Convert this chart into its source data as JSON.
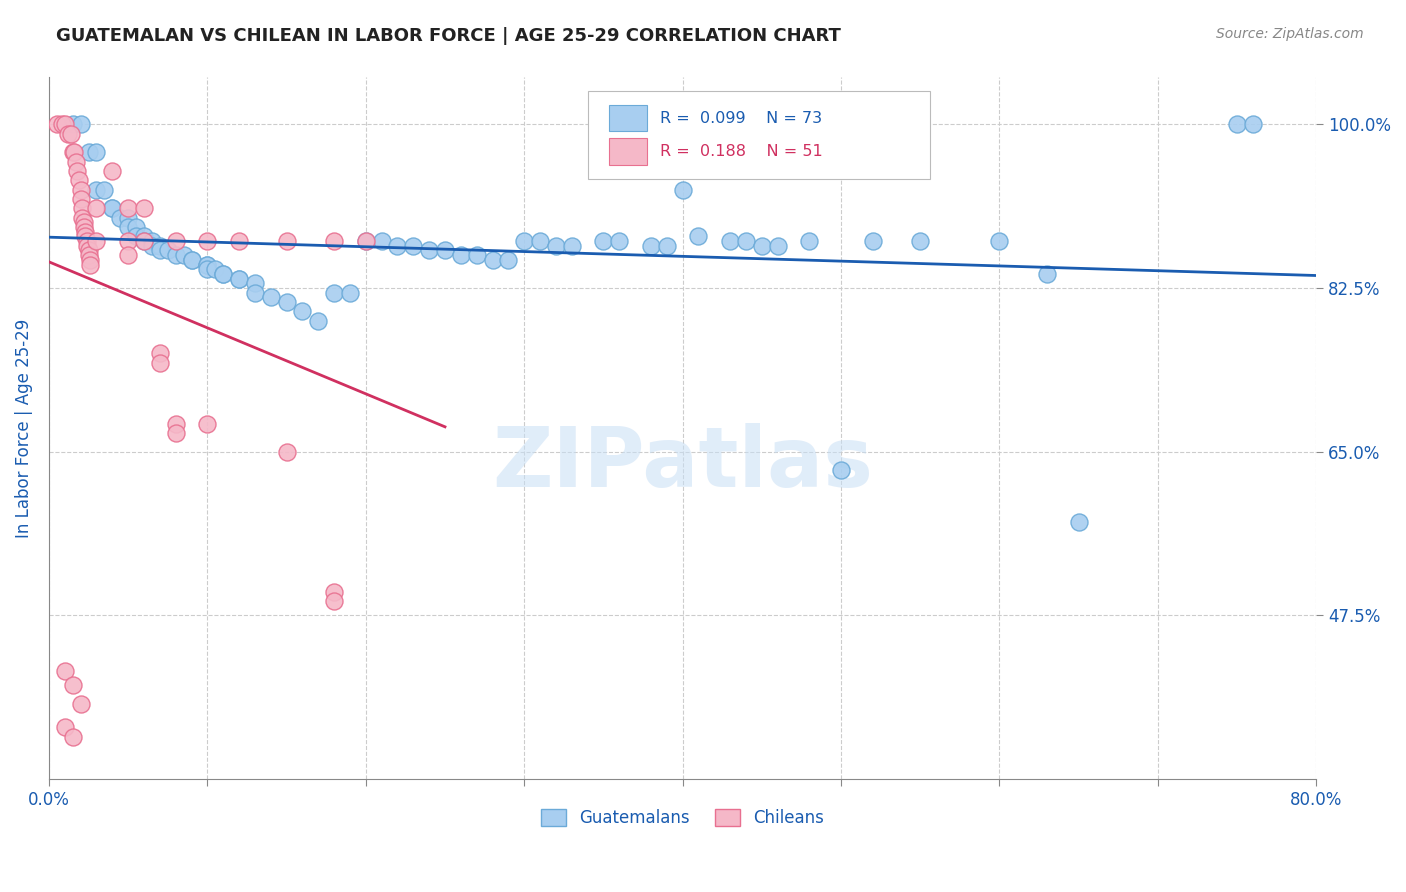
{
  "title": "GUATEMALAN VS CHILEAN IN LABOR FORCE | AGE 25-29 CORRELATION CHART",
  "source": "Source: ZipAtlas.com",
  "ylabel": "In Labor Force | Age 25-29",
  "watermark": "ZIPatlas",
  "R_blue": "0.099",
  "N_blue": "73",
  "R_pink": "0.188",
  "N_pink": "51",
  "blue_color": "#A8CEF0",
  "blue_edge_color": "#6BAAD8",
  "pink_color": "#F5B8C8",
  "pink_edge_color": "#E87090",
  "blue_line_color": "#1A5CB0",
  "pink_line_color": "#D03060",
  "grid_color": "#CCCCCC",
  "title_color": "#222222",
  "axis_tick_color": "#1A5CB0",
  "ylabel_color": "#1A5CB0",
  "xlim": [
    0.0,
    0.8
  ],
  "ylim": [
    0.3,
    1.05
  ],
  "ytick_vals": [
    1.0,
    0.825,
    0.65,
    0.475
  ],
  "ytick_labels": [
    "100.0%",
    "82.5%",
    "65.0%",
    "47.5%"
  ],
  "xtick_vals": [
    0.0,
    0.1,
    0.2,
    0.3,
    0.4,
    0.5,
    0.6,
    0.7,
    0.8
  ],
  "xtick_labels": [
    "0.0%",
    "",
    "",
    "",
    "",
    "",
    "",
    "",
    "80.0%"
  ],
  "blue_scatter": [
    [
      0.015,
      1.0
    ],
    [
      0.02,
      1.0
    ],
    [
      0.025,
      0.97
    ],
    [
      0.03,
      0.97
    ],
    [
      0.03,
      0.93
    ],
    [
      0.035,
      0.93
    ],
    [
      0.04,
      0.91
    ],
    [
      0.04,
      0.91
    ],
    [
      0.045,
      0.9
    ],
    [
      0.05,
      0.9
    ],
    [
      0.05,
      0.89
    ],
    [
      0.055,
      0.89
    ],
    [
      0.055,
      0.88
    ],
    [
      0.06,
      0.88
    ],
    [
      0.06,
      0.875
    ],
    [
      0.065,
      0.875
    ],
    [
      0.065,
      0.87
    ],
    [
      0.07,
      0.87
    ],
    [
      0.07,
      0.865
    ],
    [
      0.075,
      0.865
    ],
    [
      0.08,
      0.86
    ],
    [
      0.085,
      0.86
    ],
    [
      0.09,
      0.855
    ],
    [
      0.09,
      0.855
    ],
    [
      0.1,
      0.85
    ],
    [
      0.1,
      0.85
    ],
    [
      0.1,
      0.845
    ],
    [
      0.105,
      0.845
    ],
    [
      0.11,
      0.84
    ],
    [
      0.11,
      0.84
    ],
    [
      0.12,
      0.835
    ],
    [
      0.12,
      0.835
    ],
    [
      0.13,
      0.83
    ],
    [
      0.13,
      0.82
    ],
    [
      0.14,
      0.815
    ],
    [
      0.15,
      0.81
    ],
    [
      0.16,
      0.8
    ],
    [
      0.17,
      0.79
    ],
    [
      0.18,
      0.82
    ],
    [
      0.19,
      0.82
    ],
    [
      0.2,
      0.875
    ],
    [
      0.21,
      0.875
    ],
    [
      0.22,
      0.87
    ],
    [
      0.23,
      0.87
    ],
    [
      0.24,
      0.865
    ],
    [
      0.25,
      0.865
    ],
    [
      0.26,
      0.86
    ],
    [
      0.27,
      0.86
    ],
    [
      0.28,
      0.855
    ],
    [
      0.29,
      0.855
    ],
    [
      0.3,
      0.875
    ],
    [
      0.31,
      0.875
    ],
    [
      0.32,
      0.87
    ],
    [
      0.33,
      0.87
    ],
    [
      0.35,
      0.875
    ],
    [
      0.36,
      0.875
    ],
    [
      0.38,
      0.87
    ],
    [
      0.39,
      0.87
    ],
    [
      0.4,
      0.93
    ],
    [
      0.41,
      0.88
    ],
    [
      0.43,
      0.875
    ],
    [
      0.44,
      0.875
    ],
    [
      0.45,
      0.87
    ],
    [
      0.46,
      0.87
    ],
    [
      0.48,
      0.875
    ],
    [
      0.5,
      0.63
    ],
    [
      0.52,
      0.875
    ],
    [
      0.55,
      0.875
    ],
    [
      0.6,
      0.875
    ],
    [
      0.63,
      0.84
    ],
    [
      0.65,
      0.575
    ],
    [
      0.75,
      1.0
    ],
    [
      0.76,
      1.0
    ]
  ],
  "pink_scatter": [
    [
      0.005,
      1.0
    ],
    [
      0.008,
      1.0
    ],
    [
      0.01,
      1.0
    ],
    [
      0.012,
      0.99
    ],
    [
      0.014,
      0.99
    ],
    [
      0.015,
      0.97
    ],
    [
      0.016,
      0.97
    ],
    [
      0.017,
      0.96
    ],
    [
      0.018,
      0.95
    ],
    [
      0.019,
      0.94
    ],
    [
      0.02,
      0.93
    ],
    [
      0.02,
      0.92
    ],
    [
      0.021,
      0.91
    ],
    [
      0.021,
      0.9
    ],
    [
      0.022,
      0.895
    ],
    [
      0.022,
      0.89
    ],
    [
      0.023,
      0.885
    ],
    [
      0.023,
      0.88
    ],
    [
      0.024,
      0.875
    ],
    [
      0.024,
      0.87
    ],
    [
      0.025,
      0.865
    ],
    [
      0.025,
      0.86
    ],
    [
      0.026,
      0.855
    ],
    [
      0.026,
      0.85
    ],
    [
      0.03,
      0.91
    ],
    [
      0.03,
      0.875
    ],
    [
      0.04,
      0.95
    ],
    [
      0.05,
      0.91
    ],
    [
      0.05,
      0.875
    ],
    [
      0.05,
      0.86
    ],
    [
      0.06,
      0.91
    ],
    [
      0.06,
      0.875
    ],
    [
      0.07,
      0.755
    ],
    [
      0.07,
      0.745
    ],
    [
      0.08,
      0.875
    ],
    [
      0.08,
      0.68
    ],
    [
      0.08,
      0.67
    ],
    [
      0.1,
      0.875
    ],
    [
      0.1,
      0.68
    ],
    [
      0.12,
      0.875
    ],
    [
      0.15,
      0.875
    ],
    [
      0.15,
      0.65
    ],
    [
      0.18,
      0.875
    ],
    [
      0.18,
      0.5
    ],
    [
      0.18,
      0.49
    ],
    [
      0.2,
      0.875
    ],
    [
      0.01,
      0.415
    ],
    [
      0.015,
      0.4
    ],
    [
      0.02,
      0.38
    ],
    [
      0.01,
      0.355
    ],
    [
      0.015,
      0.345
    ]
  ]
}
